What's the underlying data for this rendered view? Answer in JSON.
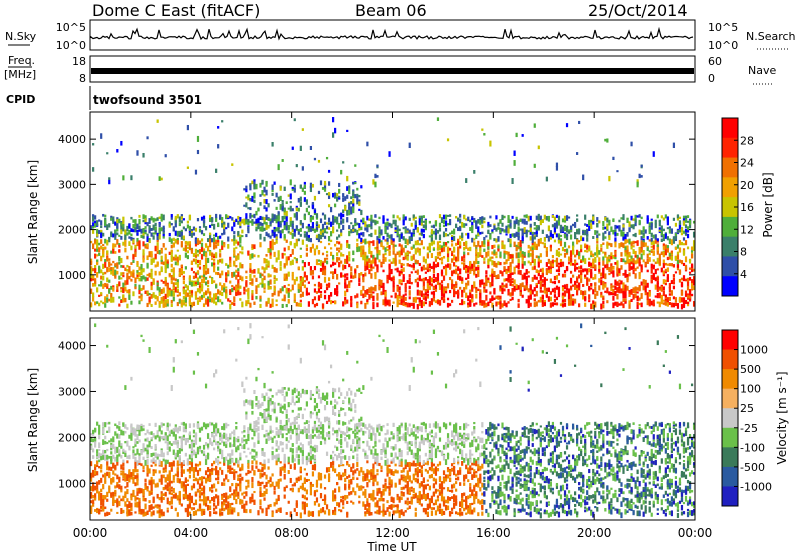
{
  "header": {
    "station": "Dome C East (fitACF)",
    "beam": "Beam 06",
    "date": "25/Oct/2014"
  },
  "noise_panel": {
    "left_label": "N.Sky",
    "left_ticks": [
      "10^5",
      "10^0"
    ],
    "right_ticks": [
      "10^5",
      "10^0"
    ],
    "right_label": "N.Search"
  },
  "freq_panel": {
    "left_label_1": "Freq.",
    "left_label_2": "[MHz]",
    "left_ticks": [
      "18",
      "8"
    ],
    "right_ticks": [
      "60",
      "0"
    ],
    "right_label": "Nave"
  },
  "cpid_panel": {
    "label": "CPID",
    "program": "twofsound 3501"
  },
  "colors": {
    "power": [
      "#0000ff",
      "#2f4fa8",
      "#3a7f6a",
      "#4fae3a",
      "#c8c400",
      "#f0a000",
      "#f07000",
      "#ff2400",
      "#ff0000"
    ],
    "velocity": [
      "#2020c0",
      "#2a5aa0",
      "#3a7a5a",
      "#6ac04a",
      "#c8c8c8",
      "#f5b060",
      "#f08a00",
      "#f05000",
      "#ff0000"
    ]
  },
  "chart_data": [
    {
      "type": "heatmap",
      "quantity": "power",
      "ylabel": "Slant Range [km]",
      "xlabel": "",
      "ylim": [
        200,
        4600
      ],
      "y_ticks": [
        "1000",
        "2000",
        "3000",
        "4000"
      ],
      "x_ticks": [
        "00:00",
        "04:00",
        "08:00",
        "12:00",
        "16:00",
        "20:00",
        "00:00"
      ],
      "colorbar": {
        "label": "Power [dB]",
        "ticks": [
          "28",
          "24",
          "20",
          "16",
          "12",
          "8",
          "4"
        ]
      }
    },
    {
      "type": "heatmap",
      "quantity": "velocity",
      "ylabel": "Slant Range [km]",
      "xlabel": "Time UT",
      "ylim": [
        200,
        4600
      ],
      "y_ticks": [
        "1000",
        "2000",
        "3000",
        "4000"
      ],
      "x_ticks": [
        "00:00",
        "04:00",
        "08:00",
        "12:00",
        "16:00",
        "20:00",
        "00:00"
      ],
      "colorbar": {
        "label": "Velocity [m s⁻¹]",
        "ticks": [
          "1000",
          "500",
          "100",
          "25",
          "-25",
          "-100",
          "-500",
          "-1000"
        ]
      }
    }
  ]
}
